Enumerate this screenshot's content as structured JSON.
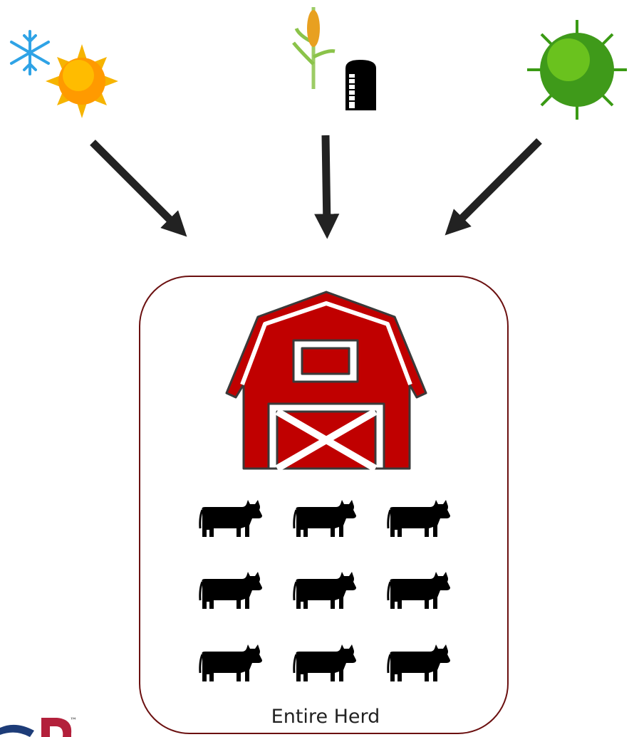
{
  "diagram": {
    "group_label": "Entire Herd"
  },
  "logo": {
    "trademark": "™"
  }
}
